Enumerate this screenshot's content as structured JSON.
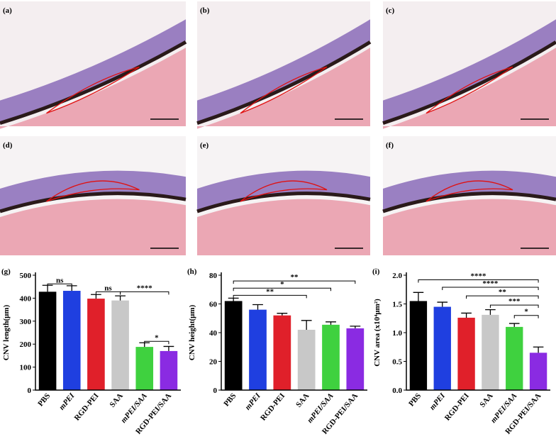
{
  "image_panels": [
    "(a)",
    "(b)",
    "(c)",
    "(d)",
    "(e)",
    "(f)"
  ],
  "chart_data": [
    {
      "type": "bar",
      "title": "(g)",
      "ylabel": "CNV length(μm)",
      "categories": [
        "PBS",
        "mPEI",
        "RGD-PEI",
        "SAA",
        "mPEI/SAA",
        "RGD-PEI/SAA"
      ],
      "values": [
        428,
        432,
        398,
        390,
        188,
        170
      ],
      "errors": [
        28,
        22,
        18,
        20,
        18,
        20
      ],
      "colors": [
        "#000000",
        "#1f3fe0",
        "#e0202a",
        "#c8c8c8",
        "#3fd13f",
        "#8a2be2"
      ],
      "ylim": [
        0,
        500
      ],
      "yticks": [
        0,
        100,
        200,
        300,
        400,
        500
      ],
      "annotations": [
        {
          "text": "ns",
          "from": "PBS",
          "to": "mPEI",
          "y": 462
        },
        {
          "text": "ns",
          "from": "RGD-PEI",
          "to": "SAA",
          "y": 428
        },
        {
          "text": "****",
          "from": "SAA",
          "to": "RGD-PEI/SAA",
          "y": 428
        },
        {
          "text": "*",
          "from": "mPEI/SAA",
          "to": "RGD-PEI/SAA",
          "y": 212
        }
      ]
    },
    {
      "type": "bar",
      "title": "(h)",
      "ylabel": "CNV height(μm)",
      "categories": [
        "PBS",
        "mPEI",
        "RGD-PEI",
        "SAA",
        "mPEI/SAA",
        "RGD-PEI/SAA"
      ],
      "values": [
        62,
        56,
        52,
        42,
        45.5,
        43
      ],
      "errors": [
        2,
        3.5,
        1.5,
        6.5,
        2,
        1.5
      ],
      "colors": [
        "#000000",
        "#1f3fe0",
        "#e0202a",
        "#c8c8c8",
        "#3fd13f",
        "#8a2be2"
      ],
      "ylim": [
        0,
        80
      ],
      "yticks": [
        0,
        20,
        40,
        60,
        80
      ],
      "annotations": [
        {
          "text": "**",
          "from": "PBS",
          "to": "SAA",
          "y": 66
        },
        {
          "text": "*",
          "from": "PBS",
          "to": "mPEI/SAA",
          "y": 71
        },
        {
          "text": "**",
          "from": "PBS",
          "to": "RGD-PEI/SAA",
          "y": 76
        }
      ]
    },
    {
      "type": "bar",
      "title": "(i)",
      "ylabel": "CNV area (x10⁴μm²)",
      "categories": [
        "PBS",
        "mPEI",
        "RGD-PEI",
        "SAA",
        "mPEI/SAA",
        "RGD-PEI/SAA"
      ],
      "values": [
        1.55,
        1.45,
        1.26,
        1.31,
        1.1,
        0.65
      ],
      "errors": [
        0.15,
        0.08,
        0.08,
        0.09,
        0.06,
        0.1
      ],
      "colors": [
        "#000000",
        "#1f3fe0",
        "#e0202a",
        "#c8c8c8",
        "#3fd13f",
        "#8a2be2"
      ],
      "ylim": [
        0,
        2
      ],
      "yticks": [
        {
          "value": 0,
          "label": "0.0"
        },
        0.5,
        {
          "value": 1,
          "label": "1.0"
        },
        1.5,
        {
          "value": 2,
          "label": "2.0"
        }
      ],
      "annotations": [
        {
          "text": "****",
          "from": "PBS",
          "to": "RGD-PEI/SAA",
          "y": 1.92
        },
        {
          "text": "****",
          "from": "mPEI",
          "to": "RGD-PEI/SAA",
          "y": 1.79
        },
        {
          "text": "**",
          "from": "RGD-PEI",
          "to": "RGD-PEI/SAA",
          "y": 1.64
        },
        {
          "text": "***",
          "from": "SAA",
          "to": "RGD-PEI/SAA",
          "y": 1.48
        },
        {
          "text": "*",
          "from": "mPEI/SAA",
          "to": "RGD-PEI/SAA",
          "y": 1.3
        }
      ]
    }
  ]
}
